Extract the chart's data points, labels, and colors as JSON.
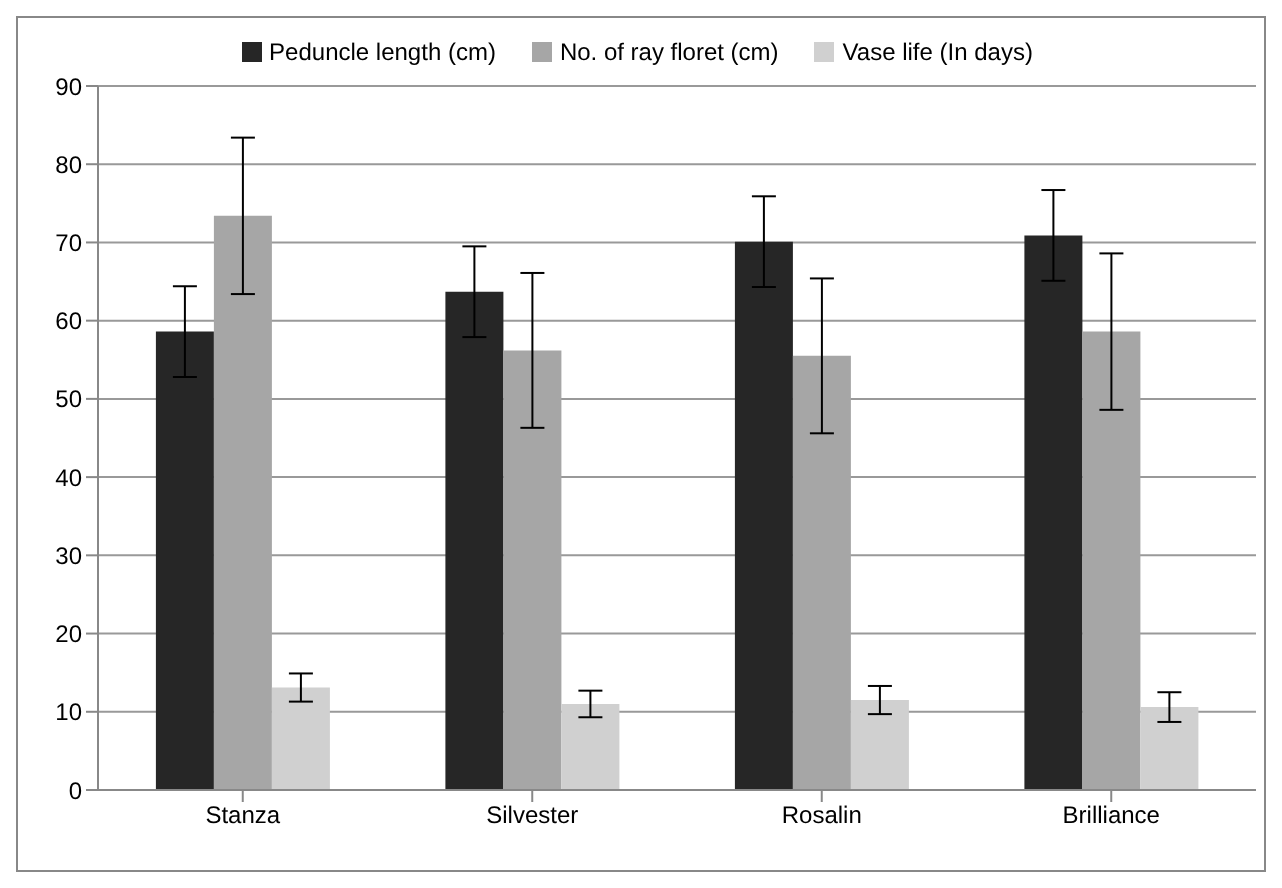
{
  "chart_data": {
    "type": "bar",
    "categories": [
      "Stanza",
      "Silvester",
      "Rosalin",
      "Brilliance"
    ],
    "series": [
      {
        "name": "Peduncle length (cm)",
        "color": "#262626",
        "values": [
          58.6,
          63.7,
          70.1,
          70.9
        ],
        "errors": [
          5.8,
          5.8,
          5.8,
          5.8
        ]
      },
      {
        "name": "No. of ray floret (cm)",
        "color": "#a6a6a6",
        "values": [
          73.4,
          56.2,
          55.5,
          58.6
        ],
        "errors": [
          10,
          9.9,
          9.9,
          10
        ]
      },
      {
        "name": "Vase life (In days)",
        "color": "#d0d0d0",
        "values": [
          13.1,
          11.0,
          11.5,
          10.6
        ],
        "errors": [
          1.8,
          1.7,
          1.8,
          1.9
        ]
      }
    ],
    "ylim": [
      0,
      90
    ],
    "yticks": [
      0,
      10,
      20,
      30,
      40,
      50,
      60,
      70,
      80,
      90
    ],
    "grid": "y",
    "legend": "top"
  }
}
